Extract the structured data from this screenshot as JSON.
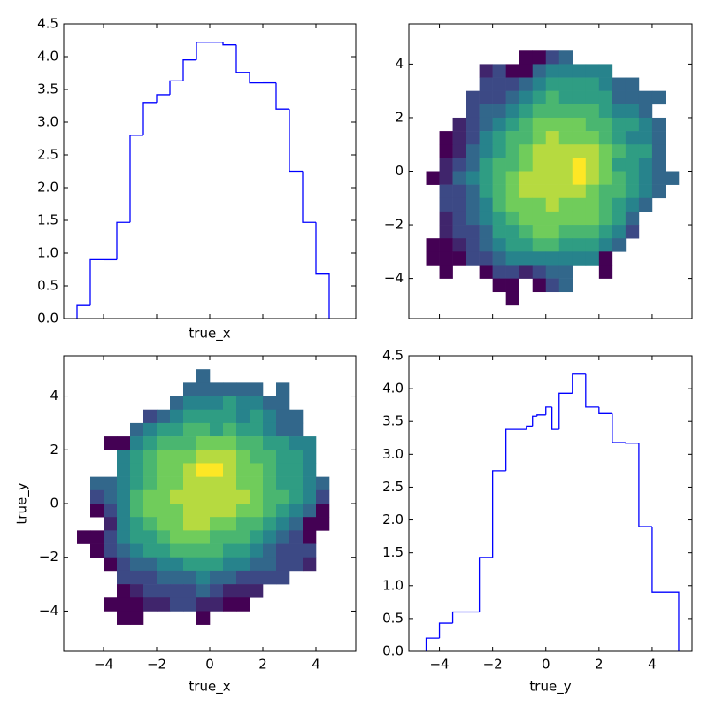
{
  "chart_data": [
    {
      "type": "histogram",
      "xlabel": "true_x",
      "color": "#0000ff",
      "bins": [
        -5,
        -4.5,
        -4,
        -3.5,
        -3,
        -2.5,
        -2,
        -1.5,
        -1,
        -0.5,
        0,
        0.5,
        1,
        1.5,
        2,
        2.5,
        3,
        3.5,
        4,
        4.5
      ],
      "values": [
        0.2,
        0.9,
        0.9,
        1.47,
        2.8,
        3.3,
        3.42,
        3.63,
        3.95,
        4.22,
        4.22,
        4.18,
        3.76,
        3.6,
        3.6,
        3.2,
        2.25,
        1.47,
        0.68
      ],
      "xlim": [
        -5.5,
        5.5
      ],
      "ylim": [
        0,
        4.5
      ],
      "xticks": [
        -4,
        -2,
        0,
        2,
        4
      ],
      "yticks": [
        {
          "value": 0,
          "label": "0.0"
        },
        0.5,
        {
          "value": 1,
          "label": "1.0"
        },
        1.5,
        {
          "value": 2,
          "label": "2.0"
        },
        2.5,
        {
          "value": 3,
          "label": "3.0"
        },
        3.5,
        {
          "value": 4,
          "label": "4.0"
        },
        4.5
      ],
      "xticklabels": false
    },
    {
      "type": "hist2d",
      "colormap": "viridis",
      "x_bins": [
        -5,
        -4.5,
        -4,
        -3.5,
        -3,
        -2.5,
        -2,
        -1.5,
        -1,
        -0.5,
        0,
        0.5,
        1,
        1.5,
        2,
        2.5,
        3,
        3.5,
        4,
        4.5,
        5
      ],
      "y_bins": [
        5,
        4.5,
        4,
        3.5,
        3,
        2.5,
        2,
        1.5,
        1,
        0.5,
        0,
        -0.5,
        -1,
        -1.5,
        -2,
        -2.5,
        -3,
        -3.5,
        -4,
        -4.5,
        -5
      ],
      "values": [
        [
          0,
          0,
          0,
          0,
          0,
          0,
          0,
          0,
          0,
          0,
          0,
          0,
          0,
          0,
          0,
          0,
          0,
          0,
          0,
          0
        ],
        [
          0,
          0,
          0,
          0,
          0,
          0,
          0,
          0,
          1,
          1,
          3,
          4,
          0,
          0,
          0,
          0,
          0,
          0,
          0,
          0
        ],
        [
          0,
          0,
          0,
          0,
          0,
          2,
          3,
          1,
          1,
          4,
          5,
          5,
          5,
          5,
          5,
          0,
          0,
          0,
          0,
          0
        ],
        [
          0,
          0,
          0,
          0,
          0,
          3,
          3,
          3,
          4,
          5,
          6,
          6,
          6,
          6,
          5,
          4,
          4,
          0,
          0,
          0
        ],
        [
          0,
          0,
          0,
          0,
          3,
          3,
          3,
          4,
          5,
          6,
          7,
          6,
          6,
          6,
          6,
          4,
          4,
          4,
          4,
          0
        ],
        [
          0,
          0,
          0,
          0,
          3,
          4,
          4,
          5,
          6,
          7,
          7,
          7,
          7,
          7,
          6,
          5,
          5,
          4,
          0,
          0
        ],
        [
          0,
          0,
          0,
          2,
          3,
          4,
          5,
          6,
          7,
          8,
          8,
          8,
          8,
          7,
          7,
          6,
          6,
          5,
          4,
          0
        ],
        [
          0,
          0,
          1,
          2,
          3,
          5,
          6,
          7,
          7,
          8,
          9,
          8,
          8,
          8,
          7,
          6,
          5,
          5,
          4,
          0
        ],
        [
          0,
          0,
          1,
          2,
          4,
          5,
          6,
          7,
          8,
          9,
          9,
          9,
          9,
          9,
          8,
          7,
          6,
          6,
          4,
          0
        ],
        [
          0,
          0,
          2,
          3,
          4,
          6,
          7,
          7,
          8,
          9,
          9,
          9,
          10,
          9,
          8,
          6,
          6,
          5,
          4,
          0
        ],
        [
          0,
          1,
          2,
          4,
          5,
          6,
          7,
          8,
          9,
          9,
          9,
          9,
          10,
          9,
          8,
          7,
          6,
          5,
          4,
          4
        ],
        [
          0,
          0,
          3,
          3,
          4,
          6,
          7,
          8,
          9,
          9,
          9,
          9,
          9,
          8,
          7,
          7,
          6,
          5,
          4,
          0
        ],
        [
          0,
          0,
          3,
          3,
          4,
          5,
          7,
          8,
          8,
          8,
          9,
          8,
          8,
          8,
          7,
          6,
          5,
          4,
          0,
          0
        ],
        [
          0,
          0,
          2,
          3,
          4,
          5,
          6,
          7,
          8,
          8,
          8,
          8,
          8,
          8,
          7,
          6,
          4,
          0,
          0,
          0
        ],
        [
          0,
          0,
          2,
          3,
          3,
          4,
          6,
          6,
          7,
          8,
          8,
          7,
          7,
          7,
          6,
          5,
          3,
          0,
          0,
          0
        ],
        [
          0,
          1,
          1,
          2,
          3,
          4,
          5,
          6,
          6,
          7,
          7,
          6,
          6,
          6,
          5,
          4,
          0,
          0,
          0,
          0
        ],
        [
          0,
          1,
          1,
          1,
          3,
          3,
          4,
          5,
          5,
          5,
          5,
          5,
          5,
          5,
          1,
          0,
          0,
          0,
          0,
          0
        ],
        [
          0,
          0,
          1,
          0,
          0,
          1,
          3,
          3,
          2,
          3,
          4,
          4,
          0,
          0,
          1,
          0,
          0,
          0,
          0,
          0
        ],
        [
          0,
          0,
          0,
          0,
          0,
          0,
          1,
          1,
          0,
          1,
          3,
          4,
          0,
          0,
          0,
          0,
          0,
          0,
          0,
          0
        ],
        [
          0,
          0,
          0,
          0,
          0,
          0,
          0,
          1,
          0,
          0,
          0,
          0,
          0,
          0,
          0,
          0,
          0,
          0,
          0,
          0
        ]
      ],
      "xlim": [
        -5.15,
        5.5
      ],
      "ylim": [
        -5.5,
        5.5
      ],
      "xticks": [
        -4,
        -2,
        0,
        2,
        4
      ],
      "yticks": [
        {
          "value": -4,
          "label": "−4"
        },
        {
          "value": -2,
          "label": "−2"
        },
        0,
        2,
        4
      ],
      "xticklabels": false
    },
    {
      "type": "hist2d",
      "colormap": "viridis",
      "xlabel": "true_x",
      "ylabel": "true_y",
      "x_bins": [
        -5,
        -4.5,
        -4,
        -3.5,
        -3,
        -2.5,
        -2,
        -1.5,
        -1,
        -0.5,
        0,
        0.5,
        1,
        1.5,
        2,
        2.5,
        3,
        3.5,
        4,
        4.5,
        5
      ],
      "y_bins": [
        5,
        4.5,
        4,
        3.5,
        3,
        2.5,
        2,
        1.5,
        1,
        0.5,
        0,
        -0.5,
        -1,
        -1.5,
        -2,
        -2.5,
        -3,
        -3.5,
        -4,
        -4.5,
        -5
      ],
      "values": [
        [
          0,
          0,
          0,
          0,
          0,
          0,
          0,
          0,
          0,
          4,
          0,
          0,
          0,
          0,
          0,
          0,
          0,
          0,
          0,
          0
        ],
        [
          0,
          0,
          0,
          0,
          0,
          0,
          0,
          0,
          4,
          4,
          4,
          4,
          4,
          4,
          0,
          4,
          0,
          0,
          0,
          0
        ],
        [
          0,
          0,
          0,
          0,
          0,
          0,
          0,
          4,
          5,
          5,
          5,
          6,
          5,
          5,
          4,
          4,
          0,
          0,
          0,
          0
        ],
        [
          0,
          0,
          0,
          0,
          0,
          3,
          4,
          5,
          6,
          6,
          6,
          6,
          5,
          6,
          5,
          4,
          4,
          0,
          0,
          0
        ],
        [
          0,
          0,
          0,
          0,
          4,
          5,
          6,
          6,
          7,
          7,
          6,
          7,
          6,
          6,
          5,
          4,
          4,
          0,
          0,
          0
        ],
        [
          0,
          0,
          1,
          1,
          5,
          6,
          7,
          7,
          7,
          8,
          8,
          8,
          7,
          7,
          6,
          6,
          5,
          5,
          0,
          0
        ],
        [
          0,
          0,
          0,
          5,
          6,
          7,
          8,
          8,
          8,
          9,
          9,
          9,
          8,
          7,
          7,
          6,
          6,
          5,
          0,
          0
        ],
        [
          0,
          0,
          0,
          5,
          6,
          7,
          8,
          8,
          9,
          10,
          10,
          9,
          8,
          8,
          7,
          6,
          6,
          5,
          0,
          0
        ],
        [
          0,
          4,
          4,
          5,
          6,
          7,
          8,
          8,
          9,
          9,
          9,
          9,
          8,
          8,
          7,
          6,
          6,
          5,
          4,
          0
        ],
        [
          0,
          3,
          4,
          5,
          7,
          8,
          8,
          9,
          9,
          9,
          9,
          9,
          9,
          8,
          7,
          7,
          6,
          5,
          3,
          0
        ],
        [
          0,
          1,
          3,
          5,
          7,
          8,
          8,
          8,
          9,
          9,
          9,
          9,
          8,
          8,
          7,
          6,
          5,
          4,
          1,
          0
        ],
        [
          0,
          0,
          2,
          5,
          6,
          7,
          8,
          8,
          9,
          9,
          8,
          8,
          7,
          7,
          6,
          5,
          4,
          1,
          1,
          0
        ],
        [
          1,
          1,
          3,
          5,
          6,
          6,
          7,
          8,
          8,
          8,
          7,
          7,
          7,
          6,
          5,
          4,
          3,
          1,
          0,
          0
        ],
        [
          0,
          1,
          3,
          4,
          5,
          6,
          6,
          7,
          7,
          7,
          7,
          6,
          6,
          5,
          4,
          3,
          3,
          3,
          0,
          0
        ],
        [
          0,
          0,
          1,
          3,
          4,
          4,
          5,
          5,
          6,
          6,
          6,
          5,
          5,
          4,
          4,
          3,
          3,
          2,
          0,
          0
        ],
        [
          0,
          0,
          0,
          3,
          3,
          3,
          4,
          4,
          4,
          5,
          4,
          4,
          3,
          3,
          3,
          3,
          0,
          0,
          0,
          0
        ],
        [
          0,
          0,
          0,
          1,
          2,
          3,
          3,
          3,
          3,
          4,
          3,
          2,
          2,
          2,
          0,
          0,
          0,
          0,
          0,
          0
        ],
        [
          0,
          0,
          1,
          1,
          1,
          2,
          2,
          3,
          3,
          2,
          2,
          1,
          1,
          0,
          0,
          0,
          0,
          0,
          0,
          0
        ],
        [
          0,
          0,
          0,
          1,
          1,
          0,
          0,
          0,
          0,
          1,
          0,
          0,
          0,
          0,
          0,
          0,
          0,
          0,
          0,
          0
        ],
        [
          0,
          0,
          0,
          0,
          0,
          0,
          0,
          0,
          0,
          0,
          0,
          0,
          0,
          0,
          0,
          0,
          0,
          0,
          0,
          0
        ]
      ],
      "xlim": [
        -5.5,
        5.5
      ],
      "ylim": [
        -5.5,
        5.5
      ],
      "xticks": [
        {
          "value": -4,
          "label": "−4"
        },
        {
          "value": -2,
          "label": "−2"
        },
        0,
        2,
        4
      ],
      "yticks": [
        {
          "value": -4,
          "label": "−4"
        },
        {
          "value": -2,
          "label": "−2"
        },
        0,
        2,
        4
      ],
      "xticklabels": true
    },
    {
      "type": "histogram",
      "xlabel": "true_y",
      "color": "#0000ff",
      "bins": [
        -4.5,
        -4,
        -3.5,
        -2.5,
        -2,
        -1.5,
        -0.73,
        -0.5,
        -0.33,
        0,
        0.23,
        0.5,
        1,
        1.5,
        2,
        2.5,
        3,
        3.5,
        4,
        5
      ],
      "values": [
        0.2,
        0.43,
        0.6,
        1.43,
        2.75,
        3.38,
        3.43,
        3.58,
        3.6,
        3.72,
        3.38,
        3.93,
        4.22,
        3.72,
        3.62,
        3.18,
        3.17,
        1.9,
        0.9
      ],
      "xlim": [
        -5.15,
        5.5
      ],
      "ylim": [
        0,
        4.5
      ],
      "xticks": [
        {
          "value": -4,
          "label": "−4"
        },
        {
          "value": -2,
          "label": "−2"
        },
        0,
        2,
        4
      ],
      "yticks": [
        {
          "value": 0,
          "label": "0.0"
        },
        0.5,
        {
          "value": 1,
          "label": "1.0"
        },
        1.5,
        {
          "value": 2,
          "label": "2.0"
        },
        2.5,
        {
          "value": 3,
          "label": "3.0"
        },
        3.5,
        {
          "value": 4,
          "label": "4.0"
        },
        4.5
      ],
      "xticklabels": true
    }
  ]
}
